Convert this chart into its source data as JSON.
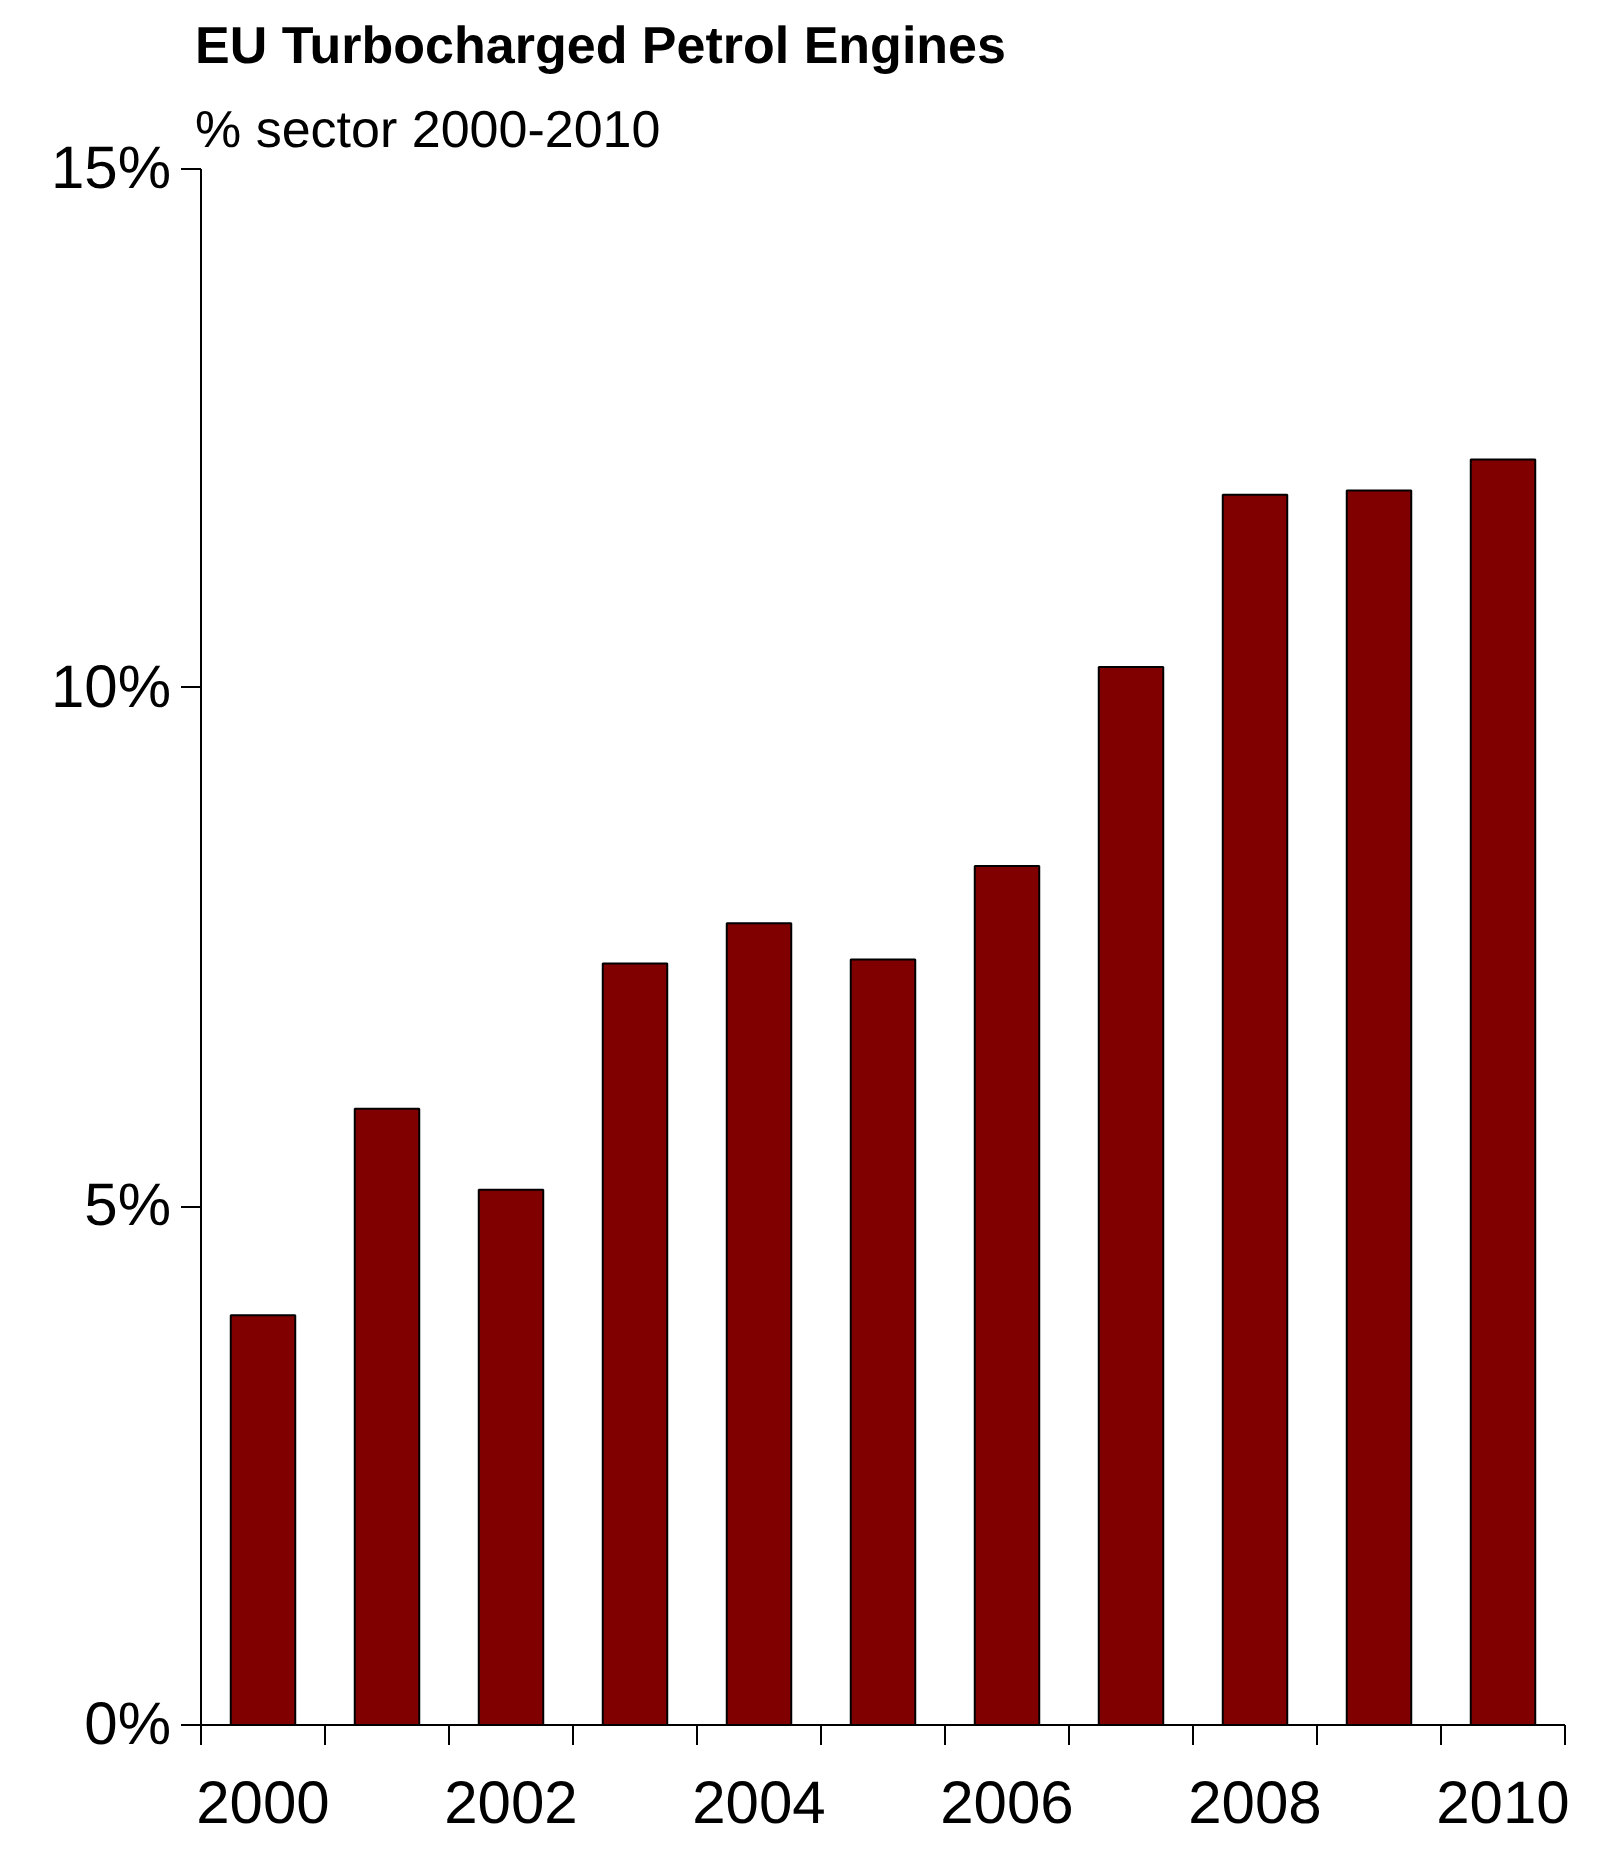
{
  "chart_data": {
    "type": "bar",
    "title": "EU Turbocharged Petrol Engines",
    "subtitle": "% sector 2000-2010",
    "categories": [
      "2000",
      null,
      "2002",
      null,
      "2004",
      null,
      "2006",
      null,
      "2008",
      null,
      "2010"
    ],
    "values": [
      3.95,
      5.94,
      5.16,
      7.34,
      7.73,
      7.38,
      8.28,
      10.2,
      11.86,
      11.9,
      12.2
    ],
    "color": "#800000",
    "ylim": [
      0,
      15
    ],
    "yticks": [
      {
        "value": 0,
        "label": "0%"
      },
      {
        "value": 5,
        "label": "5%"
      },
      {
        "value": 10,
        "label": "10%"
      },
      {
        "value": 15,
        "label": "15%"
      }
    ],
    "grid": false
  }
}
